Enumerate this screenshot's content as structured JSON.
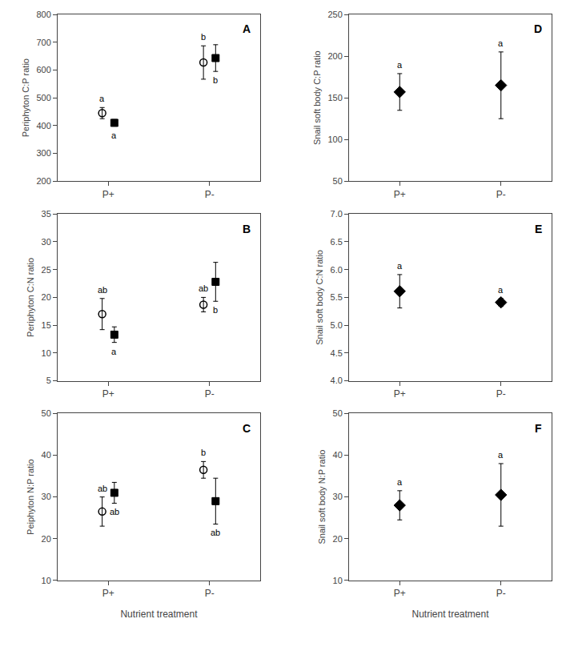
{
  "chart_data": [
    {
      "type": "scatter",
      "title": "A",
      "ylabel": "Periphyton C:P ratio",
      "categories": [
        "P+",
        "P-"
      ],
      "ylim": [
        200,
        800
      ],
      "yticks": [
        200,
        300,
        400,
        500,
        600,
        700,
        800
      ],
      "grid": false,
      "series": [
        {
          "marker": "circle-open",
          "color": "black",
          "values": [
            445,
            627
          ],
          "errors": [
            20,
            60
          ],
          "annotations": [
            "a",
            "b"
          ]
        },
        {
          "marker": "square",
          "color": "black",
          "values": [
            410,
            643
          ],
          "errors": [
            12,
            48
          ],
          "annotations": [
            "a",
            "b"
          ]
        }
      ]
    },
    {
      "type": "scatter",
      "title": "B",
      "ylabel": "Periphyton C:N ratio",
      "categories": [
        "P+",
        "P-"
      ],
      "ylim": [
        5,
        35
      ],
      "yticks": [
        5,
        10,
        15,
        20,
        25,
        30,
        35
      ],
      "grid": false,
      "series": [
        {
          "marker": "circle-open",
          "color": "black",
          "values": [
            17.0,
            18.7
          ],
          "errors": [
            2.8,
            1.3
          ],
          "annotations": [
            "ab",
            "ab"
          ]
        },
        {
          "marker": "square",
          "color": "black",
          "values": [
            13.3,
            22.8
          ],
          "errors": [
            1.4,
            3.5
          ],
          "annotations": [
            "a",
            "b"
          ]
        }
      ]
    },
    {
      "type": "scatter",
      "title": "C",
      "ylabel": "Peiphyton N:P ratio",
      "xlabel": "Nutrient treatment",
      "categories": [
        "P+",
        "P-"
      ],
      "ylim": [
        10,
        50
      ],
      "yticks": [
        10,
        20,
        30,
        40,
        50
      ],
      "grid": false,
      "series": [
        {
          "marker": "circle-open",
          "color": "black",
          "values": [
            26.5,
            36.5
          ],
          "errors": [
            3.5,
            2.0
          ],
          "annotations": [
            "ab",
            "b"
          ]
        },
        {
          "marker": "square",
          "color": "black",
          "values": [
            31.0,
            29.0
          ],
          "errors": [
            2.5,
            5.5
          ],
          "annotations": [
            "ab",
            "ab"
          ]
        }
      ]
    },
    {
      "type": "scatter",
      "title": "D",
      "ylabel": "Snail soft body C:P ratio",
      "categories": [
        "P+",
        "P-"
      ],
      "ylim": [
        50,
        250
      ],
      "yticks": [
        50,
        100,
        150,
        200,
        250
      ],
      "grid": false,
      "series": [
        {
          "marker": "diamond",
          "color": "black",
          "values": [
            157,
            165
          ],
          "errors": [
            22,
            40
          ],
          "annotations": [
            "a",
            "a"
          ]
        }
      ]
    },
    {
      "type": "scatter",
      "title": "E",
      "ylabel": "Snail soft body C:N ratio",
      "categories": [
        "P+",
        "P-"
      ],
      "ylim": [
        4.0,
        7.0
      ],
      "yticks": [
        {
          "value": 4.0,
          "label": "4.0"
        },
        4.5,
        {
          "value": 5.0,
          "label": "5.0"
        },
        5.5,
        {
          "value": 6.0,
          "label": "6.0"
        },
        6.5,
        {
          "value": 7.0,
          "label": "7.0"
        }
      ],
      "grid": false,
      "series": [
        {
          "marker": "diamond",
          "color": "black",
          "values": [
            5.61,
            5.41
          ],
          "errors": [
            0.3,
            0.07
          ],
          "annotations": [
            "a",
            "a"
          ]
        }
      ]
    },
    {
      "type": "scatter",
      "title": "F",
      "ylabel": "Snail soft body N:P ratio",
      "xlabel": "Nutrient treatment",
      "categories": [
        "P+",
        "P-"
      ],
      "ylim": [
        10,
        50
      ],
      "yticks": [
        10,
        20,
        30,
        40,
        50
      ],
      "grid": false,
      "series": [
        {
          "marker": "diamond",
          "color": "black",
          "values": [
            28.0,
            30.5
          ],
          "errors": [
            3.5,
            7.5
          ],
          "annotations": [
            "a",
            "a"
          ]
        }
      ]
    }
  ]
}
